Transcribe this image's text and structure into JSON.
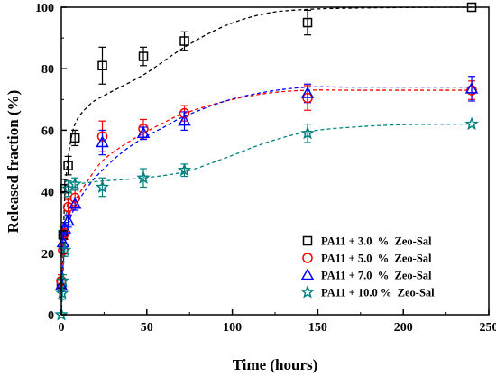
{
  "chart_data": {
    "type": "scatter",
    "xlabel": "Time (hours)",
    "ylabel": "Released fraction (%)",
    "xlim": [
      0,
      250
    ],
    "ylim": [
      0,
      100
    ],
    "xticks": [
      "0",
      "50",
      "100",
      "150",
      "200",
      "250"
    ],
    "yticks": [
      "0",
      "20",
      "40",
      "60",
      "80",
      "100"
    ],
    "grid": false,
    "legend_position": "bottom-right",
    "series": [
      {
        "name": "PA11 + 3.0  %  Zeo-Sal",
        "marker": "square",
        "color": "#000000",
        "points": [
          {
            "x": 0,
            "y": 10,
            "err": 2
          },
          {
            "x": 1,
            "y": 26,
            "err": 2.5
          },
          {
            "x": 2,
            "y": 41,
            "err": 3
          },
          {
            "x": 4,
            "y": 48.5,
            "err": 3
          },
          {
            "x": 8,
            "y": 57.5,
            "err": 2.5
          },
          {
            "x": 24,
            "y": 81,
            "err": 6
          },
          {
            "x": 48,
            "y": 84,
            "err": 3
          },
          {
            "x": 72,
            "y": 89,
            "err": 3
          },
          {
            "x": 144,
            "y": 95,
            "err": 4
          },
          {
            "x": 240,
            "y": 100,
            "err": 0
          }
        ],
        "fit": {
          "color": "#000000",
          "points": [
            [
              0,
              0
            ],
            [
              1,
              20
            ],
            [
              2,
              38
            ],
            [
              4,
              51
            ],
            [
              8,
              62
            ],
            [
              16,
              68
            ],
            [
              24,
              71
            ],
            [
              48,
              78
            ],
            [
              72,
              87
            ],
            [
              96,
              94
            ],
            [
              120,
              98
            ],
            [
              144,
              99.3
            ],
            [
              170,
              99.7
            ],
            [
              200,
              99.9
            ],
            [
              240,
              100
            ]
          ]
        }
      },
      {
        "name": "PA11 + 5.0  %  Zeo-Sal",
        "marker": "circle",
        "color": "#ff0000",
        "points": [
          {
            "x": 0,
            "y": 11,
            "err": 2
          },
          {
            "x": 1,
            "y": 21,
            "err": 2
          },
          {
            "x": 2,
            "y": 26.5,
            "err": 2
          },
          {
            "x": 4,
            "y": 35,
            "err": 2.5
          },
          {
            "x": 8,
            "y": 38,
            "err": 2.5
          },
          {
            "x": 24,
            "y": 58,
            "err": 5
          },
          {
            "x": 48,
            "y": 60.5,
            "err": 3
          },
          {
            "x": 72,
            "y": 65.5,
            "err": 2.5
          },
          {
            "x": 144,
            "y": 70.5,
            "err": 4
          },
          {
            "x": 240,
            "y": 73,
            "err": 3
          }
        ],
        "fit": {
          "color": "#ff0000",
          "points": [
            [
              0,
              10
            ],
            [
              2,
              23
            ],
            [
              4,
              31
            ],
            [
              8,
              37
            ],
            [
              16,
              44
            ],
            [
              24,
              50
            ],
            [
              36,
              55
            ],
            [
              48,
              59
            ],
            [
              60,
              62.5
            ],
            [
              72,
              65.5
            ],
            [
              96,
              69.5
            ],
            [
              120,
              72
            ],
            [
              144,
              73
            ],
            [
              170,
              73
            ],
            [
              200,
              73
            ],
            [
              240,
              73
            ]
          ]
        }
      },
      {
        "name": "PA11 + 7.0  %  Zeo-Sal",
        "marker": "triangle",
        "color": "#0000ff",
        "points": [
          {
            "x": 0,
            "y": 9.5,
            "err": 2
          },
          {
            "x": 1,
            "y": 23.5,
            "err": 2
          },
          {
            "x": 2,
            "y": 28,
            "err": 2
          },
          {
            "x": 4,
            "y": 30.5,
            "err": 2
          },
          {
            "x": 8,
            "y": 36,
            "err": 2
          },
          {
            "x": 24,
            "y": 56,
            "err": 4
          },
          {
            "x": 48,
            "y": 59,
            "err": 2
          },
          {
            "x": 72,
            "y": 63,
            "err": 3
          },
          {
            "x": 144,
            "y": 72,
            "err": 3
          },
          {
            "x": 240,
            "y": 73.5,
            "err": 4
          }
        ],
        "fit": {
          "color": "#0000ff",
          "points": [
            [
              0,
              9
            ],
            [
              2,
              22
            ],
            [
              4,
              29
            ],
            [
              8,
              35
            ],
            [
              16,
              42
            ],
            [
              24,
              47
            ],
            [
              36,
              53
            ],
            [
              48,
              57.5
            ],
            [
              60,
              61
            ],
            [
              72,
              64.5
            ],
            [
              96,
              69.5
            ],
            [
              120,
              72.5
            ],
            [
              144,
              74
            ],
            [
              170,
              74
            ],
            [
              200,
              74
            ],
            [
              240,
              74
            ]
          ]
        }
      },
      {
        "name": "PA11 + 10.0 %  Zeo-Sal",
        "marker": "star",
        "color": "#008080",
        "points": [
          {
            "x": 0,
            "y": 0,
            "err": 0
          },
          {
            "x": 0.5,
            "y": 7,
            "err": 2
          },
          {
            "x": 1,
            "y": 11,
            "err": 2
          },
          {
            "x": 2,
            "y": 21,
            "err": 2
          },
          {
            "x": 4,
            "y": 41,
            "err": 2.5
          },
          {
            "x": 8,
            "y": 42.5,
            "err": 2
          },
          {
            "x": 24,
            "y": 41.5,
            "err": 3
          },
          {
            "x": 48,
            "y": 44.5,
            "err": 3
          },
          {
            "x": 72,
            "y": 47,
            "err": 2
          },
          {
            "x": 144,
            "y": 59,
            "err": 3
          },
          {
            "x": 240,
            "y": 62,
            "err": 0
          }
        ],
        "fit": {
          "color": "#008080",
          "points": [
            [
              0,
              0
            ],
            [
              1,
              12
            ],
            [
              2,
              24
            ],
            [
              4,
              38
            ],
            [
              8,
              42
            ],
            [
              16,
              43
            ],
            [
              24,
              43.5
            ],
            [
              48,
              44.5
            ],
            [
              72,
              46.5
            ],
            [
              96,
              51
            ],
            [
              120,
              56
            ],
            [
              144,
              59.5
            ],
            [
              170,
              61
            ],
            [
              200,
              61.8
            ],
            [
              240,
              62
            ]
          ]
        }
      }
    ]
  }
}
